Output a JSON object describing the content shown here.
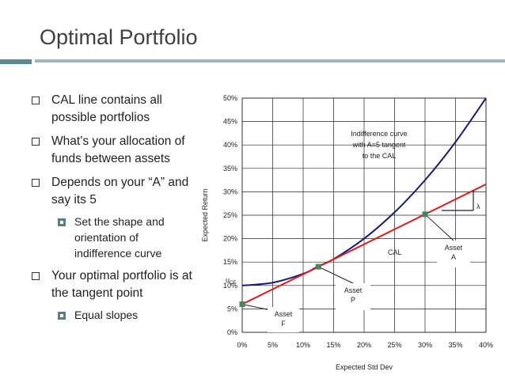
{
  "slide": {
    "title": "Optimal Portfolio",
    "bullets": [
      {
        "text": "CAL line contains all possible portfolios",
        "sub": []
      },
      {
        "text": "What’s your allocation of funds between assets",
        "sub": []
      },
      {
        "text": "Depends on your “A” and say its 5",
        "sub": [
          "Set the shape and orientation of indifference curve"
        ]
      },
      {
        "text": "Your optimal portfolio is at the tangent point",
        "sub": [
          "Equal slopes"
        ]
      }
    ]
  },
  "chart_data": {
    "type": "line",
    "xlabel": "Expected Std Dev",
    "ylabel": "Expected Return",
    "xlim": [
      0,
      0.4
    ],
    "ylim": [
      0,
      0.5
    ],
    "x_ticks": [
      "0%",
      "5%",
      "10%",
      "15%",
      "20%",
      "25%",
      "30%",
      "35%",
      "40%"
    ],
    "y_ticks": [
      "0%",
      "5%",
      "10%",
      "15%",
      "20%",
      "25%",
      "30%",
      "35%",
      "40%",
      "45%",
      "50%"
    ],
    "grid": true,
    "series": [
      {
        "name": "",
        "color": "#1a1a7a",
        "x": [
          0,
          0.05,
          0.1,
          0.125,
          0.15,
          0.2,
          0.25,
          0.3,
          0.35,
          0.4
        ],
        "y": [
          0.1,
          0.106,
          0.125,
          0.1412,
          0.1563,
          0.2,
          0.2563,
          0.325,
          0.4063,
          0.5
        ]
      },
      {
        "name": "",
        "color": "#e01b1b",
        "x": [
          0,
          0.4
        ],
        "y": [
          0.06,
          0.316
        ]
      }
    ],
    "points": [
      {
        "label": "Asset F",
        "x": 0,
        "y": 0.06
      },
      {
        "label": "Asset P",
        "x": 0.125,
        "y": 0.14
      },
      {
        "label": "Asset A",
        "x": 0.3,
        "y": 0.252
      }
    ],
    "annotations": [
      {
        "text": "Indifference curve with A=5 tangent to the CAL"
      },
      {
        "text": "CAL"
      },
      {
        "text": "λ"
      },
      {
        "text": "u",
        "sub": "CE"
      }
    ],
    "point_color": "#3f8a5a"
  }
}
